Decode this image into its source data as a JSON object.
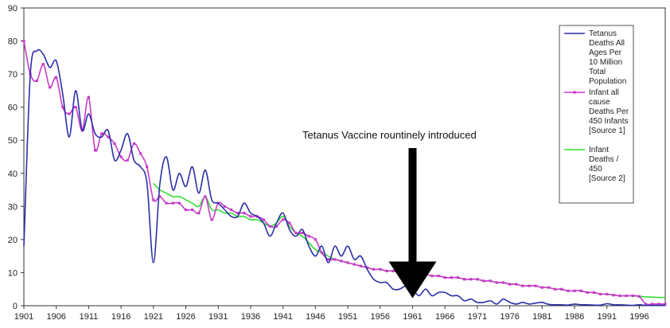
{
  "chart_data": {
    "type": "line",
    "xlim": [
      1901,
      2000
    ],
    "ylim": [
      0,
      90
    ],
    "x_ticks": [
      1901,
      1906,
      1911,
      1916,
      1921,
      1926,
      1931,
      1936,
      1941,
      1946,
      1951,
      1956,
      1961,
      1966,
      1971,
      1976,
      1981,
      1986,
      1991,
      1996
    ],
    "y_ticks": [
      0,
      10,
      20,
      30,
      40,
      50,
      60,
      70,
      80,
      90
    ],
    "grid": false,
    "legend_position": "right",
    "annotation": {
      "text": "Tetanus Vaccine rountinely introduced",
      "x": 1961,
      "y": 10
    },
    "series": [
      {
        "name": "Tetanus Deaths All Ages Per 10 Million Total Population",
        "color": "#2b2fa8",
        "marker": "none",
        "points": [
          [
            1901,
            18
          ],
          [
            1902,
            70
          ],
          [
            1903,
            77
          ],
          [
            1904,
            76
          ],
          [
            1905,
            72
          ],
          [
            1906,
            74
          ],
          [
            1907,
            64
          ],
          [
            1908,
            51
          ],
          [
            1909,
            65
          ],
          [
            1910,
            53
          ],
          [
            1911,
            58
          ],
          [
            1912,
            52
          ],
          [
            1913,
            51
          ],
          [
            1914,
            53
          ],
          [
            1915,
            44
          ],
          [
            1916,
            47
          ],
          [
            1917,
            52
          ],
          [
            1918,
            44
          ],
          [
            1919,
            42
          ],
          [
            1920,
            37
          ],
          [
            1921,
            13
          ],
          [
            1922,
            37
          ],
          [
            1923,
            45
          ],
          [
            1924,
            35
          ],
          [
            1925,
            40
          ],
          [
            1926,
            36
          ],
          [
            1927,
            42
          ],
          [
            1928,
            34
          ],
          [
            1929,
            41
          ],
          [
            1930,
            32
          ],
          [
            1931,
            31
          ],
          [
            1932,
            29
          ],
          [
            1933,
            27
          ],
          [
            1934,
            27
          ],
          [
            1935,
            31
          ],
          [
            1936,
            28
          ],
          [
            1937,
            27
          ],
          [
            1938,
            25
          ],
          [
            1939,
            21
          ],
          [
            1940,
            25
          ],
          [
            1941,
            28
          ],
          [
            1942,
            23
          ],
          [
            1943,
            21
          ],
          [
            1944,
            23
          ],
          [
            1945,
            18
          ],
          [
            1946,
            15
          ],
          [
            1947,
            18
          ],
          [
            1948,
            13
          ],
          [
            1949,
            18
          ],
          [
            1950,
            15
          ],
          [
            1951,
            18
          ],
          [
            1952,
            14
          ],
          [
            1953,
            15
          ],
          [
            1954,
            11
          ],
          [
            1955,
            8
          ],
          [
            1956,
            7
          ],
          [
            1957,
            7
          ],
          [
            1958,
            5
          ],
          [
            1959,
            5
          ],
          [
            1960,
            6
          ],
          [
            1961,
            5
          ],
          [
            1962,
            3
          ],
          [
            1963,
            5
          ],
          [
            1964,
            3
          ],
          [
            1965,
            4
          ],
          [
            1966,
            4
          ],
          [
            1967,
            3
          ],
          [
            1968,
            3
          ],
          [
            1969,
            1.5
          ],
          [
            1970,
            2
          ],
          [
            1971,
            1
          ],
          [
            1972,
            1
          ],
          [
            1973,
            1.5
          ],
          [
            1974,
            0.5
          ],
          [
            1975,
            2
          ],
          [
            1976,
            1
          ],
          [
            1977,
            0.5
          ],
          [
            1978,
            1
          ],
          [
            1979,
            0.5
          ],
          [
            1980,
            0.8
          ],
          [
            1981,
            1
          ],
          [
            1982,
            0.4
          ],
          [
            1983,
            0.3
          ],
          [
            1984,
            0.3
          ],
          [
            1985,
            0.2
          ],
          [
            1986,
            0.5
          ],
          [
            1987,
            0.3
          ],
          [
            1988,
            0.3
          ],
          [
            1989,
            0.2
          ],
          [
            1990,
            0.2
          ],
          [
            1991,
            0.6
          ],
          [
            1992,
            0.3
          ],
          [
            1993,
            0.3
          ],
          [
            1994,
            0.2
          ],
          [
            1995,
            0.1
          ],
          [
            1996,
            0.3
          ],
          [
            1997,
            0.1
          ],
          [
            1998,
            0.1
          ],
          [
            1999,
            0.1
          ],
          [
            2000,
            0.1
          ]
        ]
      },
      {
        "name": "Infant all cause Deaths Per 450 Infants [Source 1]",
        "color": "#c83ac8",
        "marker": "square",
        "points": [
          [
            1901,
            80
          ],
          [
            1902,
            70
          ],
          [
            1903,
            68
          ],
          [
            1904,
            73
          ],
          [
            1905,
            66
          ],
          [
            1906,
            69
          ],
          [
            1907,
            60
          ],
          [
            1908,
            58
          ],
          [
            1909,
            60
          ],
          [
            1910,
            53
          ],
          [
            1911,
            63
          ],
          [
            1912,
            47
          ],
          [
            1913,
            52
          ],
          [
            1914,
            51
          ],
          [
            1915,
            49
          ],
          [
            1916,
            45
          ],
          [
            1917,
            44
          ],
          [
            1918,
            49
          ],
          [
            1919,
            46
          ],
          [
            1920,
            42
          ],
          [
            1921,
            32
          ],
          [
            1922,
            33
          ],
          [
            1923,
            31
          ],
          [
            1924,
            31
          ],
          [
            1925,
            31
          ],
          [
            1926,
            29
          ],
          [
            1927,
            29
          ],
          [
            1928,
            28
          ],
          [
            1929,
            33
          ],
          [
            1930,
            26
          ],
          [
            1931,
            31
          ],
          [
            1932,
            30
          ],
          [
            1933,
            29
          ],
          [
            1934,
            28
          ],
          [
            1935,
            28
          ],
          [
            1936,
            27
          ],
          [
            1937,
            27
          ],
          [
            1938,
            26
          ],
          [
            1939,
            24
          ],
          [
            1940,
            24
          ],
          [
            1941,
            26
          ],
          [
            1942,
            25
          ],
          [
            1943,
            22
          ],
          [
            1944,
            22
          ],
          [
            1945,
            21
          ],
          [
            1946,
            20
          ],
          [
            1947,
            16
          ],
          [
            1948,
            14
          ],
          [
            1949,
            14
          ],
          [
            1950,
            13.5
          ],
          [
            1951,
            13
          ],
          [
            1952,
            12.5
          ],
          [
            1953,
            12
          ],
          [
            1954,
            11.5
          ],
          [
            1955,
            11
          ],
          [
            1956,
            11
          ],
          [
            1957,
            10.5
          ],
          [
            1958,
            10.5
          ],
          [
            1959,
            10
          ],
          [
            1960,
            10
          ],
          [
            1961,
            10
          ],
          [
            1962,
            9.5
          ],
          [
            1963,
            9.5
          ],
          [
            1964,
            9
          ],
          [
            1965,
            9
          ],
          [
            1966,
            8.5
          ],
          [
            1967,
            8.5
          ],
          [
            1968,
            8.5
          ],
          [
            1969,
            8
          ],
          [
            1970,
            8
          ],
          [
            1971,
            8
          ],
          [
            1972,
            7.5
          ],
          [
            1973,
            7.5
          ],
          [
            1974,
            7
          ],
          [
            1975,
            7
          ],
          [
            1976,
            6.5
          ],
          [
            1977,
            6.5
          ],
          [
            1978,
            6
          ],
          [
            1979,
            6
          ],
          [
            1980,
            6
          ],
          [
            1981,
            5.5
          ],
          [
            1982,
            5.5
          ],
          [
            1983,
            5
          ],
          [
            1984,
            5
          ],
          [
            1985,
            4.5
          ],
          [
            1986,
            4.5
          ],
          [
            1987,
            4.5
          ],
          [
            1988,
            4
          ],
          [
            1989,
            4
          ],
          [
            1990,
            3.5
          ],
          [
            1991,
            3.5
          ],
          [
            1992,
            3.2
          ],
          [
            1993,
            3
          ],
          [
            1994,
            3
          ],
          [
            1995,
            3
          ],
          [
            1996,
            2.8
          ],
          [
            1997,
            0.5
          ],
          [
            1998,
            0.5
          ],
          [
            1999,
            0.5
          ],
          [
            2000,
            0.5
          ]
        ]
      },
      {
        "name": "Infant Deaths / 450 [Source 2]",
        "color": "#33dd33",
        "marker": "none",
        "points": [
          [
            1921,
            37
          ],
          [
            1922,
            35
          ],
          [
            1923,
            34
          ],
          [
            1924,
            33
          ],
          [
            1925,
            33
          ],
          [
            1926,
            32
          ],
          [
            1927,
            31
          ],
          [
            1928,
            30
          ],
          [
            1929,
            33
          ],
          [
            1930,
            29
          ],
          [
            1931,
            29
          ],
          [
            1932,
            28
          ],
          [
            1933,
            28
          ],
          [
            1934,
            27
          ],
          [
            1935,
            27
          ],
          [
            1936,
            26
          ],
          [
            1937,
            26
          ],
          [
            1938,
            25
          ],
          [
            1939,
            24
          ],
          [
            1940,
            25
          ],
          [
            1941,
            27
          ],
          [
            1942,
            24
          ],
          [
            1943,
            22
          ],
          [
            1944,
            21
          ],
          [
            1945,
            19
          ],
          [
            1946,
            17
          ],
          [
            1947,
            16
          ],
          [
            1948,
            15
          ],
          [
            1949,
            14
          ],
          [
            1950,
            13.5
          ],
          [
            1951,
            13
          ],
          [
            1952,
            12.5
          ],
          [
            1953,
            12
          ],
          [
            1954,
            11.5
          ],
          [
            1955,
            11
          ],
          [
            1956,
            11
          ],
          [
            1957,
            10.5
          ],
          [
            1958,
            10.5
          ],
          [
            1959,
            10
          ],
          [
            1960,
            10
          ],
          [
            1961,
            10
          ],
          [
            1962,
            9.5
          ],
          [
            1963,
            9.5
          ],
          [
            1964,
            9
          ],
          [
            1965,
            9
          ],
          [
            1966,
            8.5
          ],
          [
            1967,
            8.5
          ],
          [
            1968,
            8.5
          ],
          [
            1969,
            8
          ],
          [
            1970,
            8
          ],
          [
            1971,
            8
          ],
          [
            1972,
            7.5
          ],
          [
            1973,
            7.5
          ],
          [
            1974,
            7
          ],
          [
            1975,
            7
          ],
          [
            1976,
            6.5
          ],
          [
            1977,
            6.5
          ],
          [
            1978,
            6
          ],
          [
            1979,
            6
          ],
          [
            1980,
            6
          ],
          [
            1981,
            5.5
          ],
          [
            1982,
            5.5
          ],
          [
            1983,
            5
          ],
          [
            1984,
            5
          ],
          [
            1985,
            4.5
          ],
          [
            1986,
            4.5
          ],
          [
            1987,
            4.5
          ],
          [
            1988,
            4
          ],
          [
            1989,
            4
          ],
          [
            1990,
            3.5
          ],
          [
            1991,
            3.5
          ],
          [
            1992,
            3.2
          ],
          [
            1993,
            3
          ],
          [
            1994,
            3
          ],
          [
            1995,
            3
          ],
          [
            1996,
            2.8
          ],
          [
            1997,
            2.7
          ],
          [
            1998,
            2.6
          ],
          [
            1999,
            2.5
          ],
          [
            2000,
            2.5
          ]
        ]
      }
    ]
  }
}
